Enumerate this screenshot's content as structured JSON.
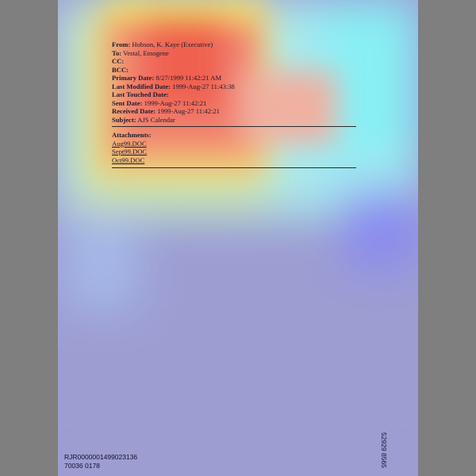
{
  "email": {
    "from_label": "From:",
    "from": "Hobson, K. Kaye (Executive)",
    "to_label": "To:",
    "to": "Vestal, Emogene",
    "cc_label": "CC:",
    "bcc_label": "BCC:",
    "primary_date_label": "Primary Date:",
    "primary_date": "8/27/1999 11:42:21 AM",
    "last_modified_label": "Last Modified Date:",
    "last_modified": "1999-Aug-27 11:43:38",
    "last_touched_label": "Last Touched Date:",
    "sent_label": "Sent Date:",
    "sent": "1999-Aug-27 11:42:21",
    "received_label": "Received Date:",
    "received": "1999-Aug-27 11:42:21",
    "subject_label": "Subject:",
    "subject": "AJS Calendar"
  },
  "attachments": {
    "label": "Attachments:",
    "files": [
      "Aug99.DOC",
      "Sept99.DOC",
      "Oct99.DOC"
    ]
  },
  "bates": {
    "left_line1": "RJR0000001499023136",
    "left_line2": "70036 0178",
    "right": "52929 8565"
  },
  "colors": {
    "frame": "#7f7f7f",
    "page": "#ffffff",
    "heatmap_hot": "#ff4040",
    "heatmap_cool": "#8080ff"
  }
}
